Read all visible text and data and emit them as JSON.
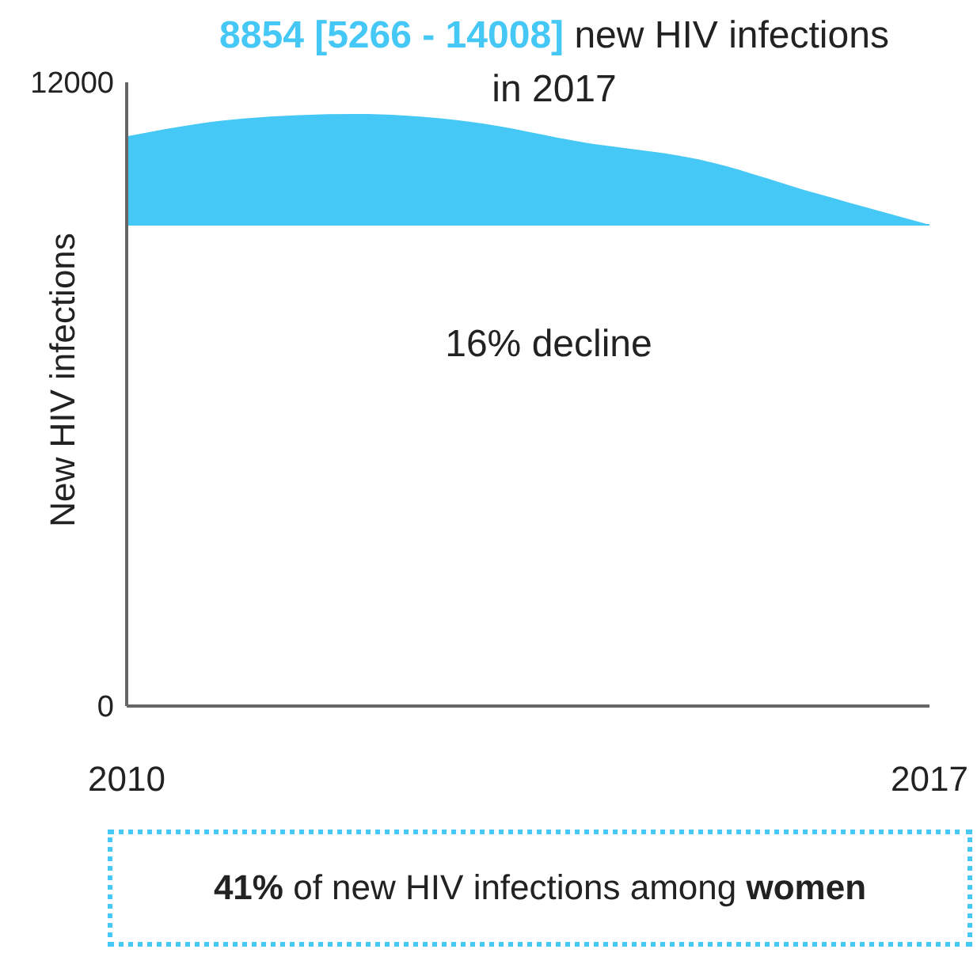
{
  "chart_data": {
    "type": "area",
    "title": "8854 [5266 - 14008] new HIV infections in 2017",
    "ylabel": "New HIV infections",
    "x": [
      2010,
      2011,
      2012,
      2013,
      2014,
      2015,
      2016,
      2017
    ],
    "series": [
      {
        "color": "#45c8f5",
        "values": [
          10960,
          11300,
          11390,
          11240,
          10840,
          10510,
          9870,
          9260
        ]
      }
    ],
    "ref_lines": [
      {
        "axis": "y",
        "value": 9260,
        "color": "#45c8f5"
      }
    ],
    "xlim": [
      2010,
      2017
    ],
    "xticks": [
      2010,
      2017
    ],
    "ylim": [
      0,
      12000
    ],
    "yticks": [
      0,
      12000
    ],
    "annotations": [
      "16% decline",
      "41% of new HIV infections among women"
    ]
  }
}
